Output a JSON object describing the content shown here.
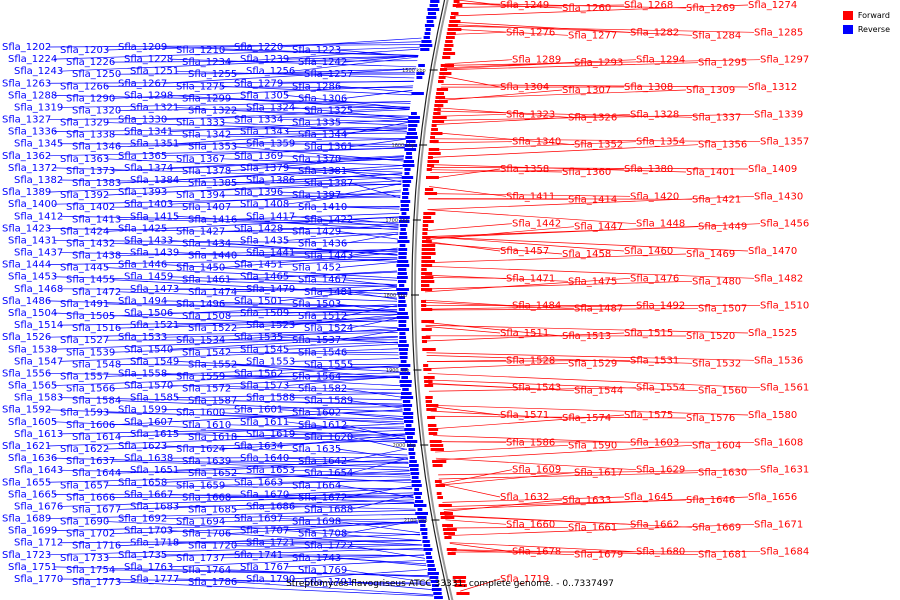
{
  "legend": {
    "forward_label": "Forward",
    "reverse_label": "Reverse",
    "forward_color": "#ff0000",
    "reverse_color": "#0000ff"
  },
  "caption": "Streptomyces flavogriseus ATCC 33331, complete genome. - 0..7337497",
  "ticks": [
    "1500 kbp",
    "1600 kbp",
    "1700 kbp",
    "1800 kbp",
    "1900 kbp",
    "2000 kbp",
    "2100 kbp"
  ],
  "reverse_genes": [
    "Sfla_1202",
    "Sfla_1203",
    "Sfla_1209",
    "Sfla_1210",
    "Sfla_1220",
    "Sfla_1223",
    "Sfla_1224",
    "Sfla_1226",
    "Sfla_1228",
    "Sfla_1234",
    "Sfla_1239",
    "Sfla_1242",
    "Sfla_1243",
    "Sfla_1250",
    "Sfla_1251",
    "Sfla_1255",
    "Sfla_1256",
    "Sfla_1257",
    "Sfla_1263",
    "Sfla_1266",
    "Sfla_1267",
    "Sfla_1275",
    "Sfla_1279",
    "Sfla_1286",
    "Sfla_1288",
    "Sfla_1290",
    "Sfla_1298",
    "Sfla_1299",
    "Sfla_1305",
    "Sfla_1306",
    "Sfla_1319",
    "Sfla_1320",
    "Sfla_1321",
    "Sfla_1322",
    "Sfla_1324",
    "Sfla_1325",
    "Sfla_1327",
    "Sfla_1329",
    "Sfla_1330",
    "Sfla_1333",
    "Sfla_1334",
    "Sfla_1335",
    "Sfla_1336",
    "Sfla_1338",
    "Sfla_1341",
    "Sfla_1342",
    "Sfla_1343",
    "Sfla_1344",
    "Sfla_1345",
    "Sfla_1346",
    "Sfla_1351",
    "Sfla_1353",
    "Sfla_1359",
    "Sfla_1361",
    "Sfla_1362",
    "Sfla_1363",
    "Sfla_1365",
    "Sfla_1367",
    "Sfla_1369",
    "Sfla_1370",
    "Sfla_1372",
    "Sfla_1373",
    "Sfla_1374",
    "Sfla_1378",
    "Sfla_1379",
    "Sfla_1381",
    "Sfla_1382",
    "Sfla_1383",
    "Sfla_1384",
    "Sfla_1385",
    "Sfla_1386",
    "Sfla_1387",
    "Sfla_1389",
    "Sfla_1392",
    "Sfla_1393",
    "Sfla_1394",
    "Sfla_1396",
    "Sfla_1397",
    "Sfla_1400",
    "Sfla_1402",
    "Sfla_1403",
    "Sfla_1407",
    "Sfla_1408",
    "Sfla_1410",
    "Sfla_1412",
    "Sfla_1413",
    "Sfla_1415",
    "Sfla_1416",
    "Sfla_1417",
    "Sfla_1422",
    "Sfla_1423",
    "Sfla_1424",
    "Sfla_1425",
    "Sfla_1427",
    "Sfla_1428",
    "Sfla_1429",
    "Sfla_1431",
    "Sfla_1432",
    "Sfla_1433",
    "Sfla_1434",
    "Sfla_1435",
    "Sfla_1436",
    "Sfla_1437",
    "Sfla_1438",
    "Sfla_1439",
    "Sfla_1440",
    "Sfla_1441",
    "Sfla_1443",
    "Sfla_1444",
    "Sfla_1445",
    "Sfla_1446",
    "Sfla_1450",
    "Sfla_1451",
    "Sfla_1452",
    "Sfla_1453",
    "Sfla_1455",
    "Sfla_1459",
    "Sfla_1461",
    "Sfla_1465",
    "Sfla_1467",
    "Sfla_1468",
    "Sfla_1472",
    "Sfla_1473",
    "Sfla_1474",
    "Sfla_1479",
    "Sfla_1481",
    "Sfla_1486",
    "Sfla_1491",
    "Sfla_1494",
    "Sfla_1496",
    "Sfla_1501",
    "Sfla_1503",
    "Sfla_1504",
    "Sfla_1505",
    "Sfla_1506",
    "Sfla_1508",
    "Sfla_1509",
    "Sfla_1512",
    "Sfla_1514",
    "Sfla_1516",
    "Sfla_1521",
    "Sfla_1522",
    "Sfla_1523",
    "Sfla_1524",
    "Sfla_1526",
    "Sfla_1527",
    "Sfla_1533",
    "Sfla_1534",
    "Sfla_1535",
    "Sfla_1537",
    "Sfla_1538",
    "Sfla_1539",
    "Sfla_1540",
    "Sfla_1542",
    "Sfla_1545",
    "Sfla_1546",
    "Sfla_1547",
    "Sfla_1548",
    "Sfla_1549",
    "Sfla_1552",
    "Sfla_1553",
    "Sfla_1555",
    "Sfla_1556",
    "Sfla_1557",
    "Sfla_1558",
    "Sfla_1559",
    "Sfla_1562",
    "Sfla_1564",
    "Sfla_1565",
    "Sfla_1566",
    "Sfla_1570",
    "Sfla_1572",
    "Sfla_1573",
    "Sfla_1582",
    "Sfla_1583",
    "Sfla_1584",
    "Sfla_1585",
    "Sfla_1587",
    "Sfla_1588",
    "Sfla_1589",
    "Sfla_1592",
    "Sfla_1593",
    "Sfla_1599",
    "Sfla_1600",
    "Sfla_1601",
    "Sfla_1602",
    "Sfla_1605",
    "Sfla_1606",
    "Sfla_1607",
    "Sfla_1610",
    "Sfla_1611",
    "Sfla_1612",
    "Sfla_1613",
    "Sfla_1614",
    "Sfla_1615",
    "Sfla_1618",
    "Sfla_1619",
    "Sfla_1620",
    "Sfla_1621",
    "Sfla_1622",
    "Sfla_1623",
    "Sfla_1624",
    "Sfla_1634",
    "Sfla_1635",
    "Sfla_1636",
    "Sfla_1637",
    "Sfla_1638",
    "Sfla_1639",
    "Sfla_1640",
    "Sfla_1642",
    "Sfla_1643",
    "Sfla_1644",
    "Sfla_1651",
    "Sfla_1652",
    "Sfla_1653",
    "Sfla_1654",
    "Sfla_1655",
    "Sfla_1657",
    "Sfla_1658",
    "Sfla_1659",
    "Sfla_1663",
    "Sfla_1664",
    "Sfla_1665",
    "Sfla_1666",
    "Sfla_1667",
    "Sfla_1668",
    "Sfla_1670",
    "Sfla_1672",
    "Sfla_1676",
    "Sfla_1677",
    "Sfla_1683",
    "Sfla_1685",
    "Sfla_1686",
    "Sfla_1688",
    "Sfla_1689",
    "Sfla_1690",
    "Sfla_1692",
    "Sfla_1694",
    "Sfla_1697",
    "Sfla_1698",
    "Sfla_1699",
    "Sfla_1702",
    "Sfla_1703",
    "Sfla_1706",
    "Sfla_1707",
    "Sfla_1708",
    "Sfla_1712",
    "Sfla_1716",
    "Sfla_1718",
    "Sfla_1720",
    "Sfla_1721",
    "Sfla_1722",
    "Sfla_1723",
    "Sfla_1733",
    "Sfla_1735",
    "Sfla_1737",
    "Sfla_1741",
    "Sfla_1743",
    "Sfla_1751",
    "Sfla_1754",
    "Sfla_1763",
    "Sfla_1764",
    "Sfla_1767",
    "Sfla_1769",
    "Sfla_1770",
    "Sfla_1773",
    "Sfla_1777",
    "Sfla_1786",
    "Sfla_1790",
    "Sfla_1791"
  ],
  "forward_genes": [
    "Sfla_1249",
    "Sfla_1260",
    "Sfla_1268",
    "Sfla_1269",
    "Sfla_1274",
    "Sfla_1276",
    "Sfla_1277",
    "Sfla_1282",
    "Sfla_1284",
    "Sfla_1285",
    "Sfla_1289",
    "Sfla_1293",
    "Sfla_1294",
    "Sfla_1295",
    "Sfla_1297",
    "Sfla_1304",
    "Sfla_1307",
    "Sfla_1308",
    "Sfla_1309",
    "Sfla_1312",
    "Sfla_1323",
    "Sfla_1326",
    "Sfla_1328",
    "Sfla_1337",
    "Sfla_1339",
    "Sfla_1340",
    "Sfla_1352",
    "Sfla_1354",
    "Sfla_1356",
    "Sfla_1357",
    "Sfla_1358",
    "Sfla_1360",
    "Sfla_1380",
    "Sfla_1401",
    "Sfla_1409",
    "Sfla_1411",
    "Sfla_1414",
    "Sfla_1420",
    "Sfla_1421",
    "Sfla_1430",
    "Sfla_1442",
    "Sfla_1447",
    "Sfla_1448",
    "Sfla_1449",
    "Sfla_1456",
    "Sfla_1457",
    "Sfla_1458",
    "Sfla_1460",
    "Sfla_1469",
    "Sfla_1470",
    "Sfla_1471",
    "Sfla_1475",
    "Sfla_1476",
    "Sfla_1480",
    "Sfla_1482",
    "Sfla_1484",
    "Sfla_1487",
    "Sfla_1492",
    "Sfla_1507",
    "Sfla_1510",
    "Sfla_1511",
    "Sfla_1513",
    "Sfla_1515",
    "Sfla_1520",
    "Sfla_1525",
    "Sfla_1528",
    "Sfla_1529",
    "Sfla_1531",
    "Sfla_1532",
    "Sfla_1536",
    "Sfla_1543",
    "Sfla_1544",
    "Sfla_1554",
    "Sfla_1560",
    "Sfla_1561",
    "Sfla_1571",
    "Sfla_1574",
    "Sfla_1575",
    "Sfla_1576",
    "Sfla_1580",
    "Sfla_1586",
    "Sfla_1590",
    "Sfla_1603",
    "Sfla_1604",
    "Sfla_1608",
    "Sfla_1609",
    "Sfla_1617",
    "Sfla_1629",
    "Sfla_1630",
    "Sfla_1631",
    "Sfla_1632",
    "Sfla_1633",
    "Sfla_1645",
    "Sfla_1646",
    "Sfla_1656",
    "Sfla_1660",
    "Sfla_1661",
    "Sfla_1662",
    "Sfla_1669",
    "Sfla_1671",
    "Sfla_1678",
    "Sfla_1679",
    "Sfla_1680",
    "Sfla_1681",
    "Sfla_1684",
    "Sfla_1719"
  ]
}
